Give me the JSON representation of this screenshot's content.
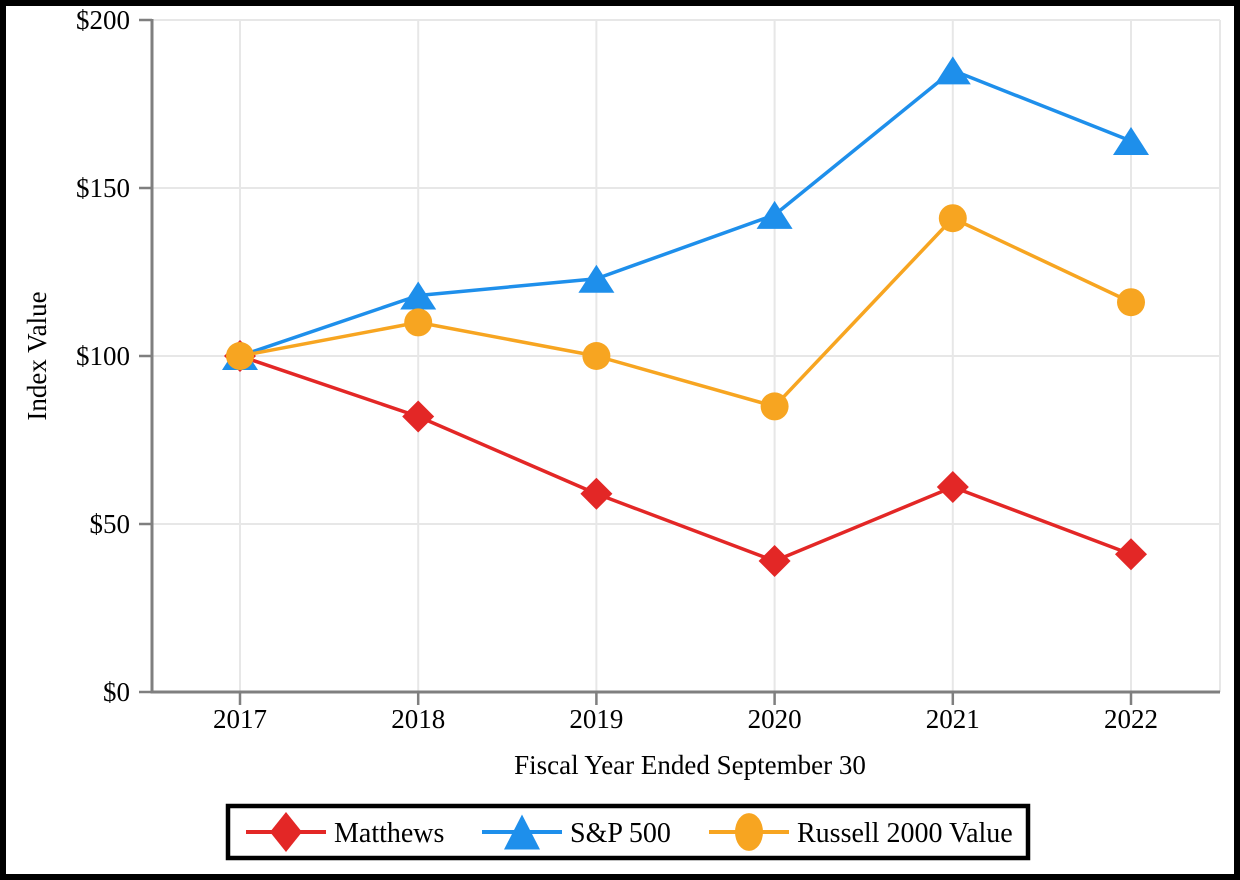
{
  "chart_data": {
    "type": "line",
    "title": "",
    "x_categories": [
      "2017",
      "2018",
      "2019",
      "2020",
      "2021",
      "2022"
    ],
    "series": [
      {
        "name": "Matthews",
        "marker": "diamond",
        "color": "#E32726",
        "values": [
          100,
          82,
          59,
          39,
          61,
          41
        ]
      },
      {
        "name": "S&P 500",
        "marker": "triangle",
        "color": "#1E8FEB",
        "values": [
          100,
          118,
          123,
          142,
          185,
          164
        ]
      },
      {
        "name": "Russell 2000 Value",
        "marker": "circle",
        "color": "#F7A521",
        "values": [
          100,
          110,
          100,
          85,
          141,
          116
        ]
      }
    ],
    "xlabel": "Fiscal Year Ended September 30",
    "ylabel": "Index Value",
    "ylim": [
      0,
      200
    ],
    "y_ticks": [
      {
        "value": 0,
        "label": "$0"
      },
      {
        "value": 50,
        "label": "$50"
      },
      {
        "value": 100,
        "label": "$100"
      },
      {
        "value": 150,
        "label": "$150"
      },
      {
        "value": 200,
        "label": "$200"
      }
    ],
    "grid": true,
    "legend_position": "bottom-boxed"
  },
  "colors": {
    "background": "#FFFFFF",
    "figure_border": "#000000",
    "axis": "#7F7F7F",
    "gridline": "#E7E7E7",
    "text": "#000000",
    "legend_border": "#000000"
  }
}
